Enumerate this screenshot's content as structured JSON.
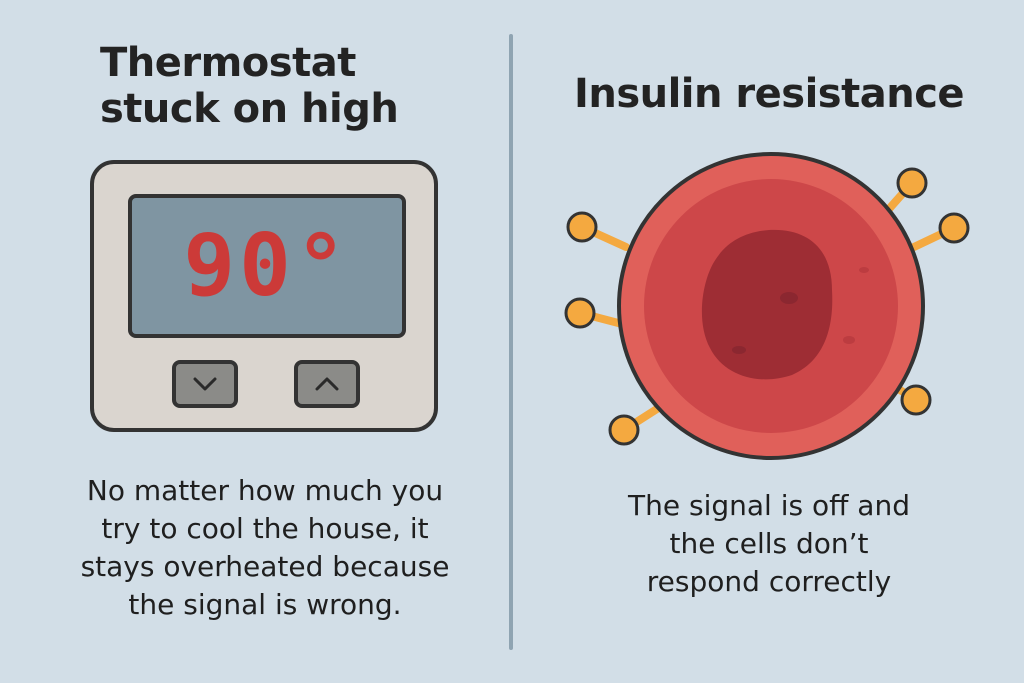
{
  "left": {
    "title_line1": "Thermostat",
    "title_line2": "stuck on high",
    "temperature": "90°",
    "caption_line1": "No matter how much you",
    "caption_line2": "try to cool the house, it",
    "caption_line3": "stays overheated because",
    "caption_line4": "the signal is wrong.",
    "buttons": [
      {
        "icon": "chevron-down-icon"
      },
      {
        "icon": "chevron-up-icon"
      }
    ]
  },
  "right": {
    "title": "Insulin resistance",
    "caption_line1": "The signal is off and",
    "caption_line2": "the cells don’t",
    "caption_line3": "respond correctly"
  },
  "colors": {
    "background": "#d2dee7",
    "divider": "#8fa4b2",
    "display_digits": "#cc3a38",
    "cell_outer": "#e0605a",
    "cell_inner": "#c94346",
    "nucleus": "#9e2d34",
    "receptor": "#f4a940"
  }
}
